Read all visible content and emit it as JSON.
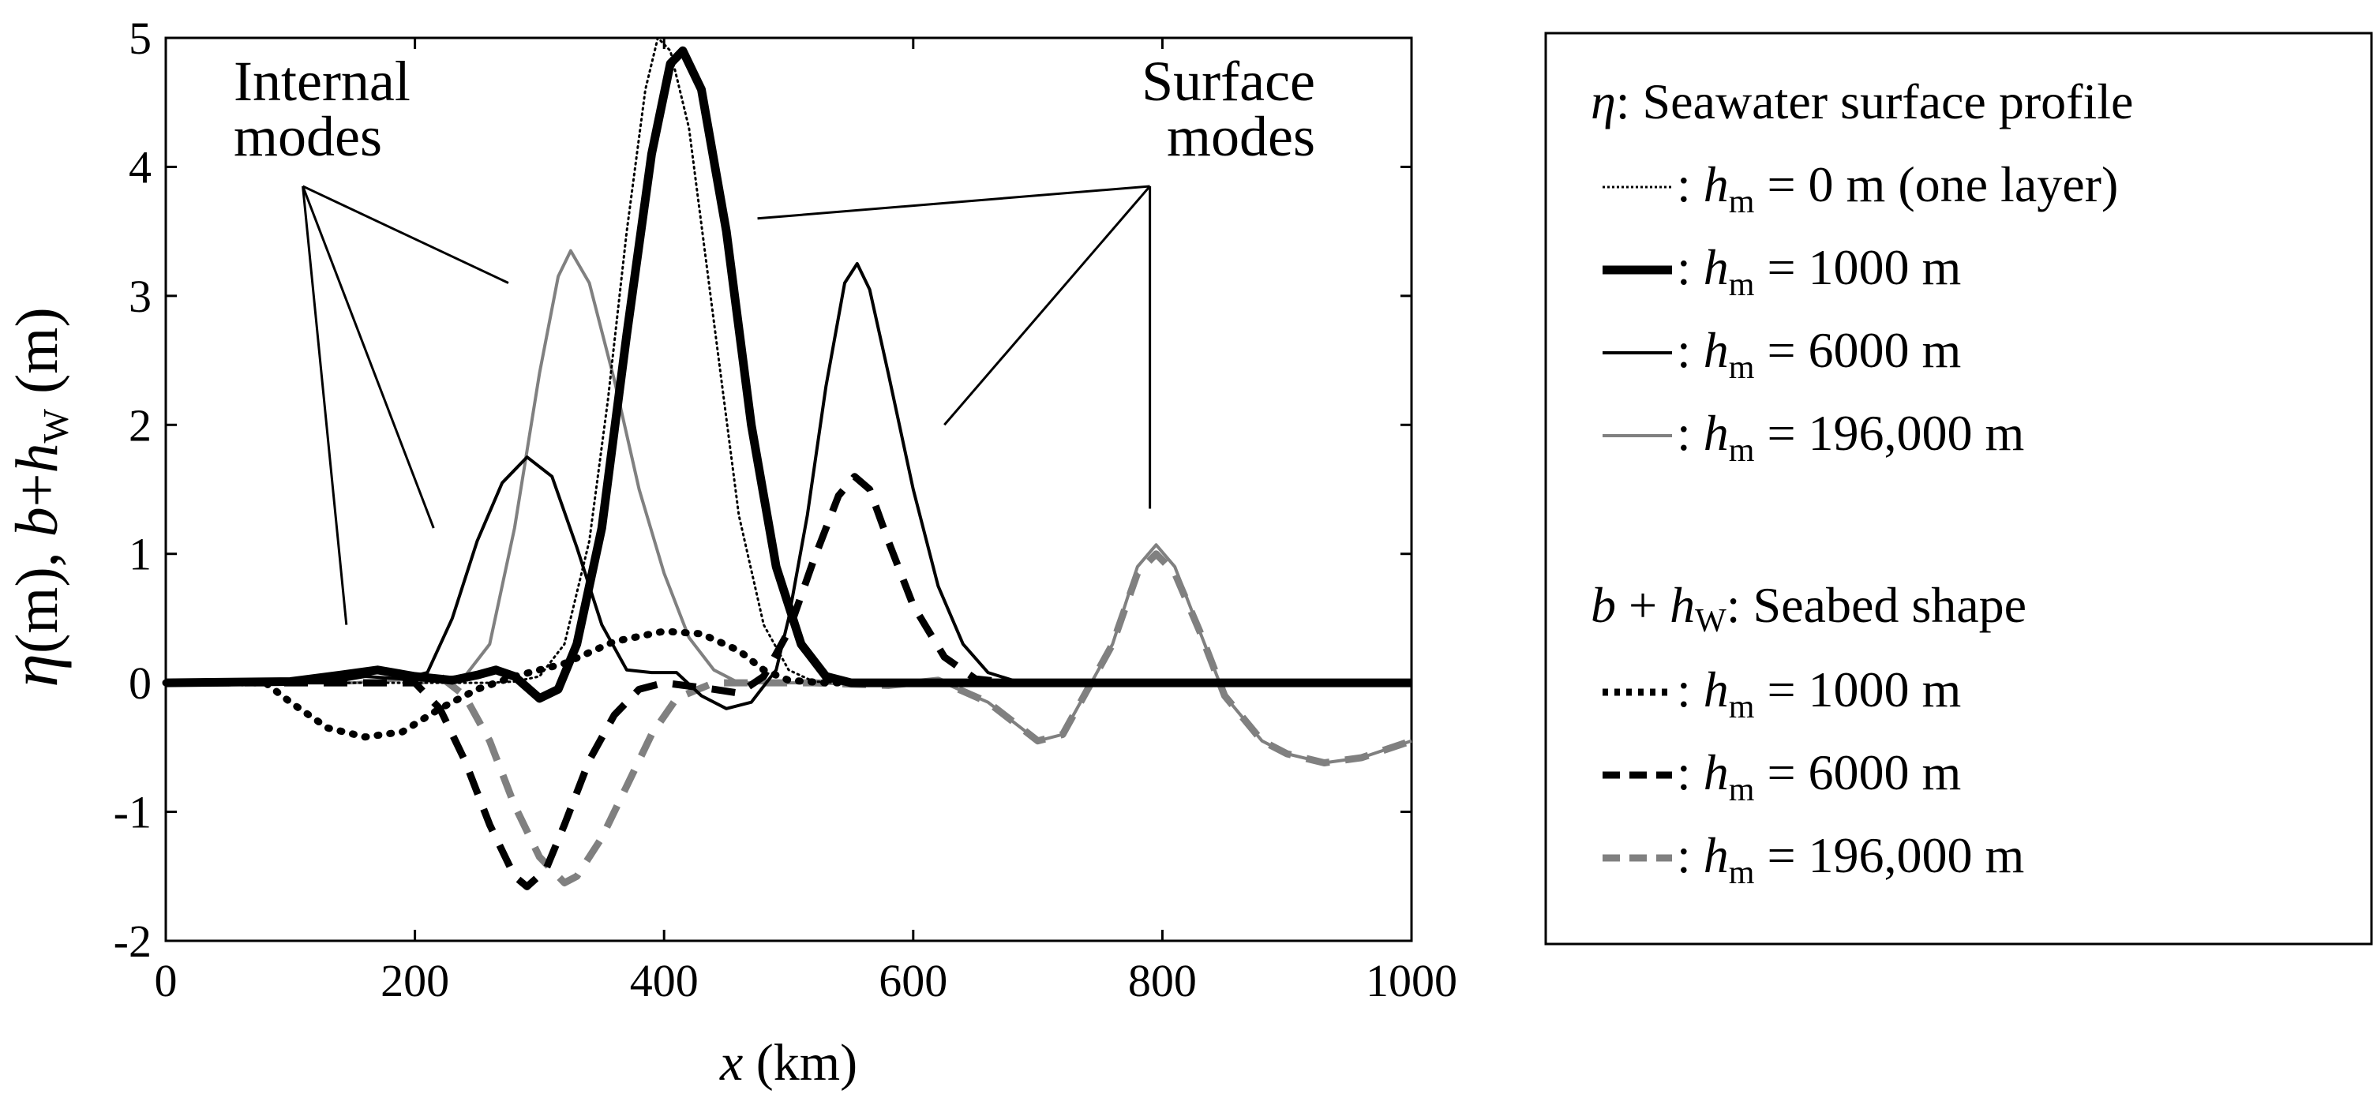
{
  "chart_data": {
    "type": "line",
    "xlabel": {
      "var": "x",
      "unit": "(km)"
    },
    "ylabel": {
      "eta": "η",
      "eta_unit": "(m),",
      "b": "b",
      "plus": "+",
      "h": "h",
      "h_sub": "W",
      "unit": "(m)"
    },
    "xlim": [
      0,
      1000
    ],
    "ylim": [
      -2,
      5
    ],
    "xticks": [
      "0",
      "200",
      "400",
      "600",
      "800",
      "1000"
    ],
    "xtick_values": [
      0,
      200,
      400,
      600,
      800,
      1000
    ],
    "yticks": [
      "-2",
      "-1",
      "0",
      "1",
      "2",
      "3",
      "4",
      "5"
    ],
    "ytick_values": [
      -2,
      -1,
      0,
      1,
      2,
      3,
      4,
      5
    ],
    "grid": false,
    "annotations": {
      "internal": {
        "line1": "Internal",
        "line2": "modes",
        "targets": [
          [
            145,
            0.45
          ],
          [
            215,
            1.2
          ],
          [
            275,
            3.1
          ]
        ],
        "anchor": [
          110,
          3.85
        ]
      },
      "surface": {
        "line1": "Surface",
        "line2": "modes",
        "targets": [
          [
            475,
            3.6
          ],
          [
            625,
            2.0
          ],
          [
            790,
            1.35
          ]
        ],
        "anchor": [
          790,
          3.85
        ]
      }
    },
    "series": [
      {
        "name": "eta_hm_0",
        "group": "eta",
        "label_value": "= 0 m (one layer)",
        "stroke": "#000000",
        "width": 3,
        "dash": "2,5",
        "points": [
          [
            0,
            0
          ],
          [
            260,
            0
          ],
          [
            280,
            0.01
          ],
          [
            300,
            0.05
          ],
          [
            320,
            0.3
          ],
          [
            340,
            1.1
          ],
          [
            355,
            2.2
          ],
          [
            370,
            3.5
          ],
          [
            385,
            4.6
          ],
          [
            395,
            5.0
          ],
          [
            405,
            4.9
          ],
          [
            420,
            4.3
          ],
          [
            440,
            2.8
          ],
          [
            460,
            1.3
          ],
          [
            480,
            0.45
          ],
          [
            500,
            0.1
          ],
          [
            520,
            0.01
          ],
          [
            540,
            0
          ],
          [
            1000,
            0
          ]
        ]
      },
      {
        "name": "eta_hm_1000",
        "group": "eta",
        "label_value": "= 1000 m",
        "stroke": "#000000",
        "width": 11,
        "dash": "",
        "points": [
          [
            0,
            0
          ],
          [
            100,
            0.01
          ],
          [
            140,
            0.06
          ],
          [
            170,
            0.1
          ],
          [
            200,
            0.05
          ],
          [
            230,
            0.02
          ],
          [
            250,
            0.06
          ],
          [
            265,
            0.1
          ],
          [
            280,
            0.05
          ],
          [
            300,
            -0.12
          ],
          [
            315,
            -0.05
          ],
          [
            330,
            0.3
          ],
          [
            350,
            1.2
          ],
          [
            370,
            2.7
          ],
          [
            390,
            4.1
          ],
          [
            405,
            4.8
          ],
          [
            415,
            4.9
          ],
          [
            430,
            4.6
          ],
          [
            450,
            3.5
          ],
          [
            470,
            2.0
          ],
          [
            490,
            0.9
          ],
          [
            510,
            0.3
          ],
          [
            530,
            0.05
          ],
          [
            550,
            0
          ],
          [
            1000,
            0
          ]
        ]
      },
      {
        "name": "eta_hm_6000",
        "group": "eta",
        "label_value": "= 6000 m",
        "stroke": "#000000",
        "width": 4,
        "dash": "",
        "points": [
          [
            0,
            0
          ],
          [
            130,
            0
          ],
          [
            160,
            0.05
          ],
          [
            190,
            0.03
          ],
          [
            210,
            0.08
          ],
          [
            230,
            0.5
          ],
          [
            250,
            1.1
          ],
          [
            270,
            1.55
          ],
          [
            290,
            1.75
          ],
          [
            310,
            1.6
          ],
          [
            330,
            1.05
          ],
          [
            350,
            0.45
          ],
          [
            370,
            0.1
          ],
          [
            390,
            0.08
          ],
          [
            410,
            0.08
          ],
          [
            430,
            -0.1
          ],
          [
            450,
            -0.2
          ],
          [
            470,
            -0.15
          ],
          [
            490,
            0.1
          ],
          [
            500,
            0.5
          ],
          [
            515,
            1.3
          ],
          [
            530,
            2.3
          ],
          [
            545,
            3.1
          ],
          [
            555,
            3.25
          ],
          [
            565,
            3.05
          ],
          [
            580,
            2.4
          ],
          [
            600,
            1.5
          ],
          [
            620,
            0.75
          ],
          [
            640,
            0.3
          ],
          [
            660,
            0.08
          ],
          [
            680,
            0.02
          ],
          [
            700,
            0
          ],
          [
            1000,
            0
          ]
        ]
      },
      {
        "name": "eta_hm_196000",
        "group": "eta",
        "label_value": "= 196,000 m",
        "stroke": "#808080",
        "width": 4,
        "dash": "",
        "points": [
          [
            0,
            0
          ],
          [
            150,
            0
          ],
          [
            200,
            0.03
          ],
          [
            240,
            0.05
          ],
          [
            260,
            0.3
          ],
          [
            280,
            1.2
          ],
          [
            300,
            2.4
          ],
          [
            315,
            3.15
          ],
          [
            325,
            3.35
          ],
          [
            340,
            3.1
          ],
          [
            360,
            2.35
          ],
          [
            380,
            1.5
          ],
          [
            400,
            0.85
          ],
          [
            420,
            0.35
          ],
          [
            440,
            0.1
          ],
          [
            460,
            0
          ],
          [
            520,
            0
          ],
          [
            580,
            -0.02
          ],
          [
            620,
            0.02
          ],
          [
            660,
            -0.15
          ],
          [
            700,
            -0.45
          ],
          [
            720,
            -0.4
          ],
          [
            760,
            0.3
          ],
          [
            780,
            0.9
          ],
          [
            795,
            1.07
          ],
          [
            810,
            0.9
          ],
          [
            830,
            0.4
          ],
          [
            850,
            -0.1
          ],
          [
            880,
            -0.45
          ],
          [
            900,
            -0.55
          ],
          [
            930,
            -0.62
          ],
          [
            960,
            -0.58
          ],
          [
            1000,
            -0.45
          ]
        ]
      },
      {
        "name": "seabed_hm_1000",
        "group": "seabed",
        "label_value": "= 1000 m",
        "stroke": "#000000",
        "width": 9,
        "dash": "2,14",
        "points": [
          [
            0,
            0
          ],
          [
            80,
            0
          ],
          [
            100,
            -0.15
          ],
          [
            130,
            -0.35
          ],
          [
            160,
            -0.42
          ],
          [
            190,
            -0.38
          ],
          [
            220,
            -0.2
          ],
          [
            250,
            -0.05
          ],
          [
            280,
            0.05
          ],
          [
            320,
            0.15
          ],
          [
            360,
            0.32
          ],
          [
            400,
            0.4
          ],
          [
            430,
            0.38
          ],
          [
            460,
            0.25
          ],
          [
            480,
            0.1
          ],
          [
            500,
            0.02
          ],
          [
            530,
            0
          ],
          [
            1000,
            0
          ]
        ]
      },
      {
        "name": "seabed_hm_6000",
        "group": "seabed",
        "label_value": "= 6000 m",
        "stroke": "#000000",
        "width": 9,
        "dash": "30,20",
        "points": [
          [
            0,
            0
          ],
          [
            200,
            0
          ],
          [
            220,
            -0.2
          ],
          [
            240,
            -0.6
          ],
          [
            260,
            -1.1
          ],
          [
            280,
            -1.5
          ],
          [
            290,
            -1.58
          ],
          [
            305,
            -1.45
          ],
          [
            320,
            -1.1
          ],
          [
            340,
            -0.6
          ],
          [
            360,
            -0.25
          ],
          [
            380,
            -0.05
          ],
          [
            400,
            0
          ],
          [
            440,
            -0.05
          ],
          [
            460,
            -0.08
          ],
          [
            480,
            0.05
          ],
          [
            500,
            0.4
          ],
          [
            520,
            0.95
          ],
          [
            540,
            1.45
          ],
          [
            553,
            1.6
          ],
          [
            565,
            1.5
          ],
          [
            580,
            1.1
          ],
          [
            600,
            0.6
          ],
          [
            625,
            0.2
          ],
          [
            650,
            0.03
          ],
          [
            680,
            0
          ],
          [
            1000,
            0
          ]
        ]
      },
      {
        "name": "seabed_hm_196000",
        "group": "seabed",
        "label_value": "= 196,000 m",
        "stroke": "#808080",
        "width": 9,
        "dash": "30,20",
        "points": [
          [
            0,
            0
          ],
          [
            200,
            0
          ],
          [
            220,
            0.05
          ],
          [
            240,
            -0.1
          ],
          [
            260,
            -0.45
          ],
          [
            280,
            -0.95
          ],
          [
            300,
            -1.35
          ],
          [
            320,
            -1.55
          ],
          [
            330,
            -1.5
          ],
          [
            350,
            -1.2
          ],
          [
            370,
            -0.8
          ],
          [
            390,
            -0.4
          ],
          [
            410,
            -0.12
          ],
          [
            440,
            0
          ],
          [
            520,
            0
          ],
          [
            580,
            -0.02
          ],
          [
            620,
            0.02
          ],
          [
            660,
            -0.15
          ],
          [
            700,
            -0.45
          ],
          [
            720,
            -0.4
          ],
          [
            760,
            0.3
          ],
          [
            780,
            0.85
          ],
          [
            795,
            1.0
          ],
          [
            810,
            0.85
          ],
          [
            830,
            0.4
          ],
          [
            850,
            -0.1
          ],
          [
            880,
            -0.45
          ],
          [
            900,
            -0.55
          ],
          [
            930,
            -0.62
          ],
          [
            960,
            -0.58
          ],
          [
            1000,
            -0.45
          ]
        ]
      }
    ],
    "legend": {
      "placement": "right",
      "eta_heading": {
        "sym": "η",
        "text": ": Seawater surface profile"
      },
      "seabed_heading": {
        "b": "b",
        "plus": " + ",
        "h": "h",
        "h_sub": "W",
        "text": ": Seabed shape"
      },
      "entry_prefix": {
        "colon": ": ",
        "h": "h",
        "h_sub": "m"
      }
    }
  }
}
